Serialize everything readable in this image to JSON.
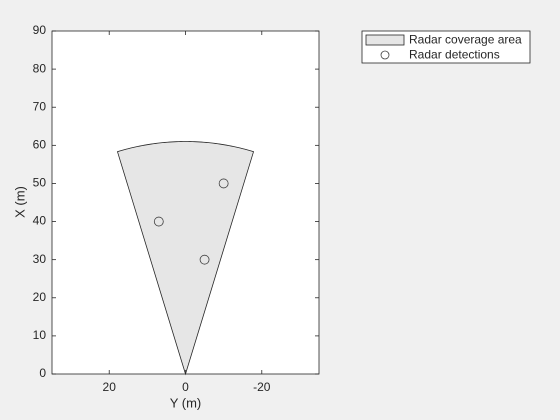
{
  "chart_data": {
    "type": "birds-eye",
    "x_label": "Y (m)",
    "y_label": "X (m)",
    "xlim": [
      35,
      -35
    ],
    "xticks": [
      20,
      0,
      -20
    ],
    "ylim": [
      0,
      90
    ],
    "yticks": [
      0,
      10,
      20,
      30,
      40,
      50,
      60,
      70,
      80,
      90
    ],
    "coverage": {
      "name": "Radar coverage area",
      "range": 61,
      "fov": 34,
      "color": "#e6e6e6"
    },
    "detections": {
      "name": "Radar detections",
      "x": [
        7,
        -5,
        -10
      ],
      "y": [
        40,
        30,
        50
      ],
      "color": "#404040"
    }
  }
}
